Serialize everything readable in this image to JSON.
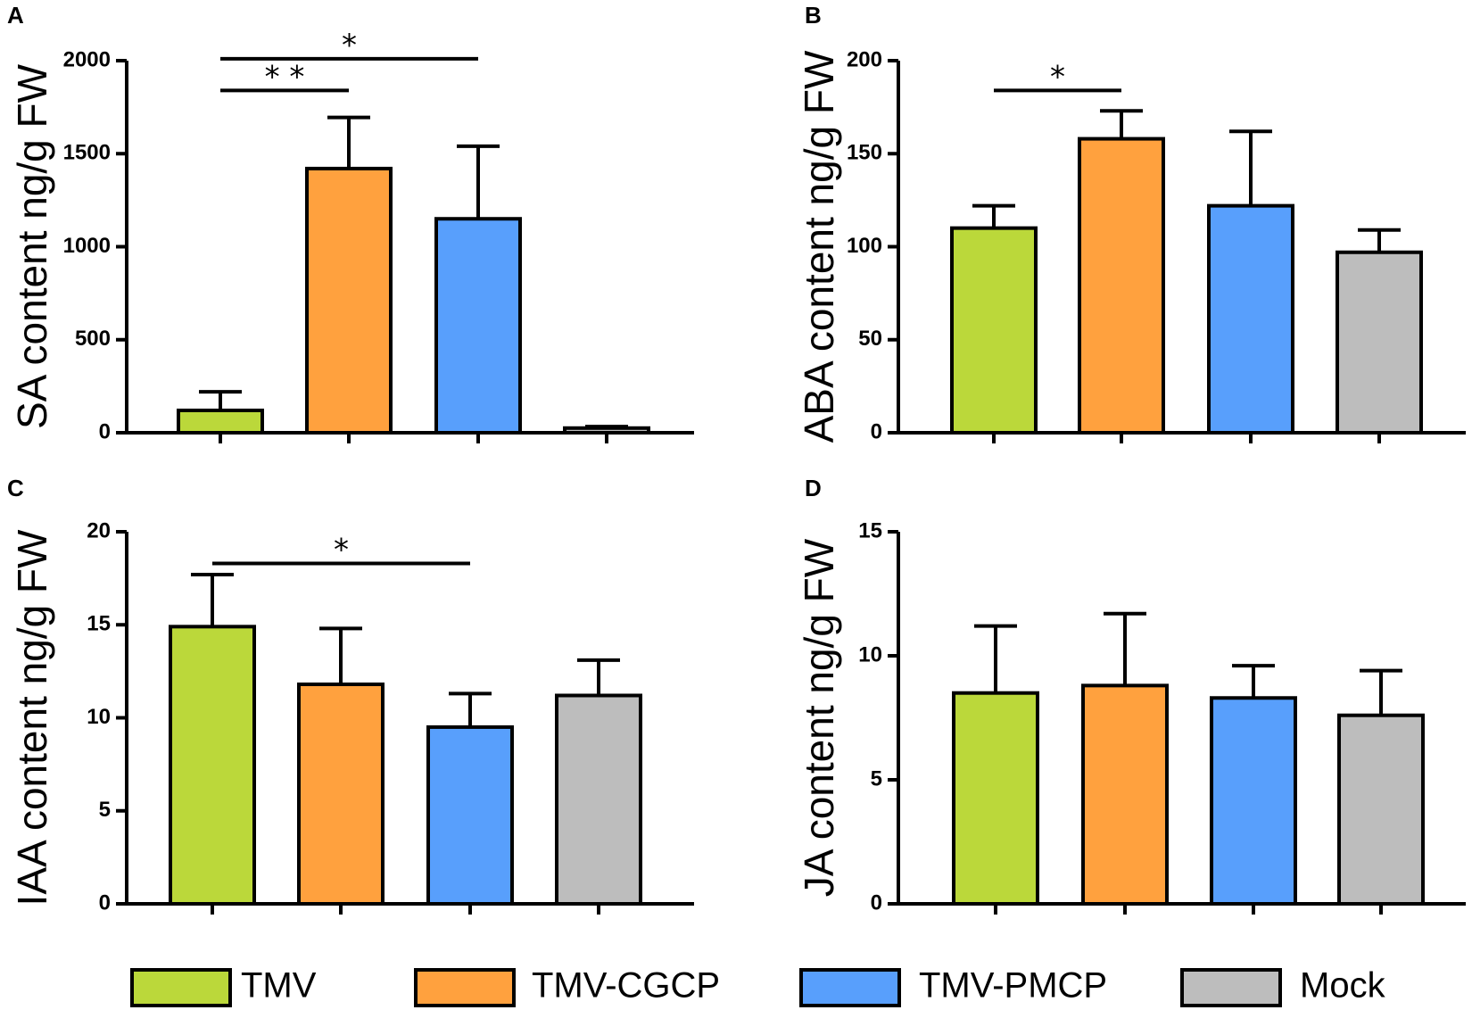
{
  "chart_data": [
    {
      "type": "bar",
      "panel": "A",
      "categories": [
        "TMV",
        "TMV-CGCP",
        "TMV-PMCP",
        "Mock"
      ],
      "values": [
        120,
        1420,
        1150,
        25
      ],
      "errors": [
        100,
        275,
        390,
        8
      ],
      "ylabel": "SA content ng/g FW",
      "ylim": [
        0,
        2000
      ],
      "yticks": [
        0,
        500,
        1000,
        1500,
        2000
      ],
      "significance": [
        {
          "from": 0,
          "to": 1,
          "label": "* *",
          "y": 1840
        },
        {
          "from": 0,
          "to": 2,
          "label": "*",
          "y": 2010
        }
      ]
    },
    {
      "type": "bar",
      "panel": "B",
      "categories": [
        "TMV",
        "TMV-CGCP",
        "TMV-PMCP",
        "Mock"
      ],
      "values": [
        110,
        158,
        122,
        97
      ],
      "errors": [
        12,
        15,
        40,
        12
      ],
      "ylabel": "ABA content ng/g FW",
      "ylim": [
        0,
        200
      ],
      "yticks": [
        0,
        50,
        100,
        150,
        200
      ],
      "significance": [
        {
          "from": 0,
          "to": 1,
          "label": "*",
          "y": 184
        }
      ]
    },
    {
      "type": "bar",
      "panel": "C",
      "categories": [
        "TMV",
        "TMV-CGCP",
        "TMV-PMCP",
        "Mock"
      ],
      "values": [
        14.9,
        11.8,
        9.5,
        11.2
      ],
      "errors": [
        2.8,
        3.0,
        1.8,
        1.9
      ],
      "ylabel": "IAA content ng/g FW",
      "ylim": [
        0,
        20
      ],
      "yticks": [
        0,
        5,
        10,
        15,
        20
      ],
      "significance": [
        {
          "from": 0,
          "to": 2,
          "label": "*",
          "y": 18.3
        }
      ]
    },
    {
      "type": "bar",
      "panel": "D",
      "categories": [
        "TMV",
        "TMV-CGCP",
        "TMV-PMCP",
        "Mock"
      ],
      "values": [
        8.5,
        8.8,
        8.3,
        7.6
      ],
      "errors": [
        2.7,
        2.9,
        1.3,
        1.8
      ],
      "ylabel": "JA content ng/g FW",
      "ylim": [
        0,
        15
      ],
      "yticks": [
        0,
        5,
        10,
        15
      ],
      "significance": []
    }
  ],
  "legend": {
    "items": [
      {
        "label": "TMV",
        "color": "#bbd83a"
      },
      {
        "label": "TMV-CGCP",
        "color": "#ffa13e"
      },
      {
        "label": "TMV-PMCP",
        "color": "#589ffc"
      },
      {
        "label": "Mock",
        "color": "#bdbdbd"
      }
    ]
  }
}
